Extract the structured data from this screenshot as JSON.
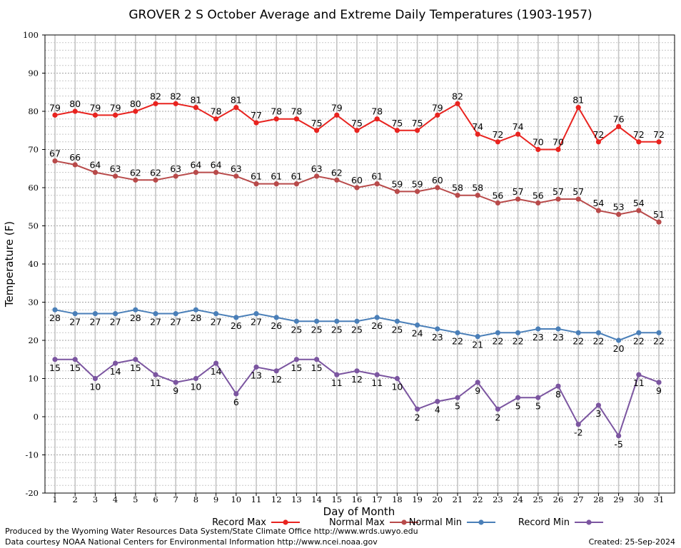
{
  "chart_data": {
    "type": "line",
    "title": "GROVER 2 S October Average and Extreme Daily Temperatures (1903-1957)",
    "xlabel": "Day of Month",
    "ylabel": "Temperature (F)",
    "xlim": [
      1,
      31
    ],
    "ylim": [
      -20,
      100
    ],
    "y_ticks": [
      -20,
      -10,
      0,
      10,
      20,
      30,
      40,
      50,
      60,
      70,
      80,
      90,
      100
    ],
    "x": [
      1,
      2,
      3,
      4,
      5,
      6,
      7,
      8,
      9,
      10,
      11,
      12,
      13,
      14,
      15,
      16,
      17,
      18,
      19,
      20,
      21,
      22,
      23,
      24,
      25,
      26,
      27,
      28,
      29,
      30,
      31
    ],
    "grid": true,
    "series": [
      {
        "name": "Record Max",
        "color": "#e8231f",
        "label_pos": "above",
        "values": [
          79,
          80,
          79,
          79,
          80,
          82,
          82,
          81,
          78,
          81,
          77,
          78,
          78,
          75,
          79,
          75,
          78,
          75,
          75,
          79,
          82,
          74,
          72,
          74,
          70,
          70,
          81,
          72,
          76,
          72,
          72
        ]
      },
      {
        "name": "Normal Max",
        "color": "#b84a4a",
        "label_pos": "above",
        "values": [
          67,
          66,
          64,
          63,
          62,
          62,
          63,
          64,
          64,
          63,
          61,
          61,
          61,
          63,
          62,
          60,
          61,
          59,
          59,
          60,
          58,
          58,
          56,
          57,
          56,
          57,
          57,
          54,
          53,
          54,
          51
        ]
      },
      {
        "name": "Normal Min",
        "color": "#4a7fb8",
        "label_pos": "below",
        "values": [
          28,
          27,
          27,
          27,
          28,
          27,
          27,
          28,
          27,
          26,
          27,
          26,
          25,
          25,
          25,
          25,
          26,
          25,
          24,
          23,
          22,
          21,
          22,
          22,
          23,
          23,
          22,
          22,
          20,
          22,
          22
        ]
      },
      {
        "name": "Record Min",
        "color": "#7b55a0",
        "label_pos": "below",
        "values": [
          15,
          15,
          10,
          14,
          15,
          11,
          9,
          10,
          14,
          6,
          13,
          12,
          15,
          15,
          11,
          12,
          11,
          10,
          2,
          4,
          5,
          9,
          2,
          5,
          5,
          8,
          -2,
          3,
          -5,
          11,
          9
        ]
      }
    ],
    "legend_placement": "bottom"
  },
  "footer": {
    "credit_line1": "Produced by the Wyoming Water Resources Data System/State Climate Office http://www.wrds.uwyo.edu",
    "credit_line2": "Data courtesy NOAA National Centers for Environmental Information http://www.ncei.noaa.gov",
    "created": "Created:  25-Sep-2024"
  }
}
